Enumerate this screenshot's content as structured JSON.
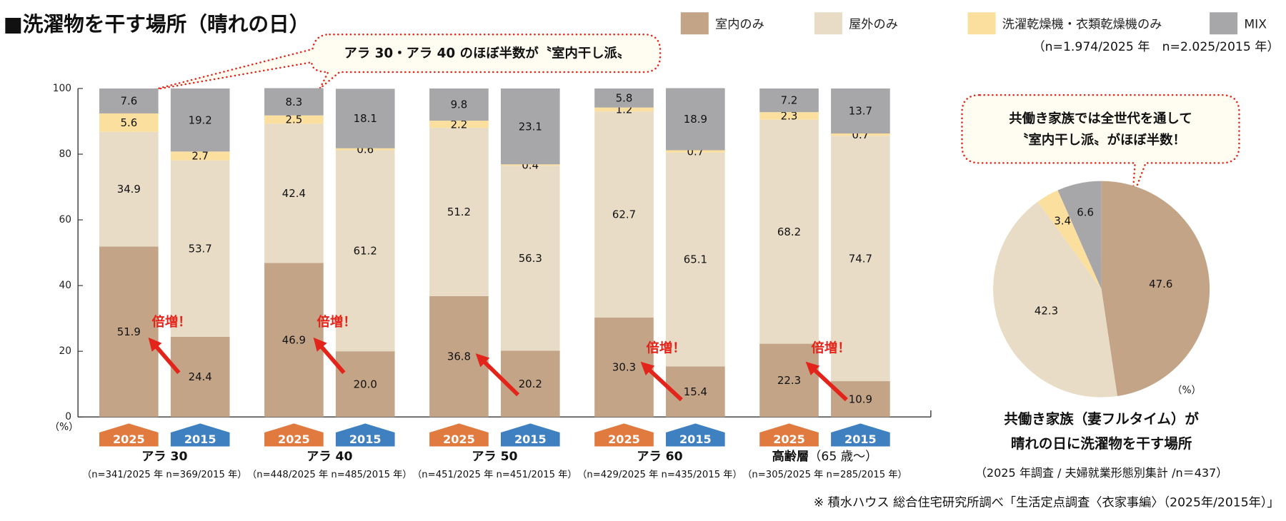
{
  "title": "■洗濯物を干す場所（晴れの日）",
  "legend": {
    "items": [
      {
        "label": "室内のみ",
        "color": "#c3a487"
      },
      {
        "label": "屋外のみ",
        "color": "#e9dcc6"
      },
      {
        "label": "洗濯乾燥機・衣類乾燥機のみ",
        "color": "#fbdf9f"
      },
      {
        "label": "MIX",
        "color": "#a7a7a9"
      }
    ],
    "sample_note": "（n=1.974/2025 年　n=2.025/2015 年）"
  },
  "callout_bars": "アラ 30・アラ 40 のほぼ半数が〝室内干し派〟",
  "callout_pie_line1": "共働き家族では全世代を通して",
  "callout_pie_line2": "〝室内干し派〟がほぼ半数！",
  "badge_colors": {
    "2025": "#e07a3f",
    "2015": "#3f80c0"
  },
  "annotation_color": "#e3241b",
  "y_unit": "（%）",
  "pie_unit": "（%）",
  "pie_title_line1": "共働き家族（妻フルタイム）が",
  "pie_title_line2": "晴れの日に洗濯物を干す場所",
  "pie_subtitle": "（2025 年調査 / 夫婦就業形態別集計 /n＝437）",
  "footnote": "※ 積水ハウス 総合住宅研究所調べ「生活定点調査〈衣家事編〉（2025年/2015年）」",
  "chart_data": [
    {
      "type": "bar",
      "stacked": true,
      "ylim": [
        0,
        100
      ],
      "yticks": [
        "0",
        "20",
        "40",
        "60",
        "80",
        "100"
      ],
      "series_names": [
        "室内のみ",
        "屋外のみ",
        "洗濯乾燥機・衣類乾燥機のみ",
        "MIX"
      ],
      "groups": [
        {
          "label": "アラ 30",
          "label_suffix": "",
          "n": "（n=341/2025 年  n=369/2015 年）",
          "annotation": "倍増！",
          "bars": [
            {
              "year": "2025",
              "values": [
                "51.9",
                "34.9",
                "5.6",
                "7.6"
              ]
            },
            {
              "year": "2015",
              "values": [
                "24.4",
                "53.7",
                "2.7",
                "19.2"
              ]
            }
          ]
        },
        {
          "label": "アラ 40",
          "label_suffix": "",
          "n": "（n=448/2025 年  n=485/2015 年）",
          "annotation": "倍増！",
          "bars": [
            {
              "year": "2025",
              "values": [
                "46.9",
                "42.4",
                "2.5",
                "8.3"
              ]
            },
            {
              "year": "2015",
              "values": [
                "20.0",
                "61.2",
                "0.6",
                "18.1"
              ]
            }
          ]
        },
        {
          "label": "アラ 50",
          "label_suffix": "",
          "n": "（n=451/2025 年  n=451/2015 年）",
          "annotation": "",
          "bars": [
            {
              "year": "2025",
              "values": [
                "36.8",
                "51.2",
                "2.2",
                "9.8"
              ]
            },
            {
              "year": "2015",
              "values": [
                "20.2",
                "56.3",
                "0.4",
                "23.1"
              ]
            }
          ]
        },
        {
          "label": "アラ 60",
          "label_suffix": "",
          "n": "（n=429/2025 年  n=435/2015 年）",
          "annotation": "倍増！",
          "bars": [
            {
              "year": "2025",
              "values": [
                "30.3",
                "62.7",
                "1.2",
                "5.8"
              ]
            },
            {
              "year": "2015",
              "values": [
                "15.4",
                "65.1",
                "0.7",
                "18.9"
              ]
            }
          ]
        },
        {
          "label": "高齢層",
          "label_suffix": "（65 歳〜）",
          "n": "（n=305/2025 年  n=285/2015 年）",
          "annotation": "倍増！",
          "bars": [
            {
              "year": "2025",
              "values": [
                "22.3",
                "68.2",
                "2.3",
                "7.2"
              ]
            },
            {
              "year": "2015",
              "values": [
                "10.9",
                "74.7",
                "0.7",
                "13.7"
              ]
            }
          ]
        }
      ]
    },
    {
      "type": "pie",
      "start": "top-clockwise",
      "slices": [
        {
          "name": "室内のみ",
          "value": "47.6"
        },
        {
          "name": "屋外のみ",
          "value": "42.3"
        },
        {
          "name": "洗濯乾燥機・衣類乾燥機のみ",
          "value": "3.4"
        },
        {
          "name": "MIX",
          "value": "6.6"
        }
      ]
    }
  ]
}
